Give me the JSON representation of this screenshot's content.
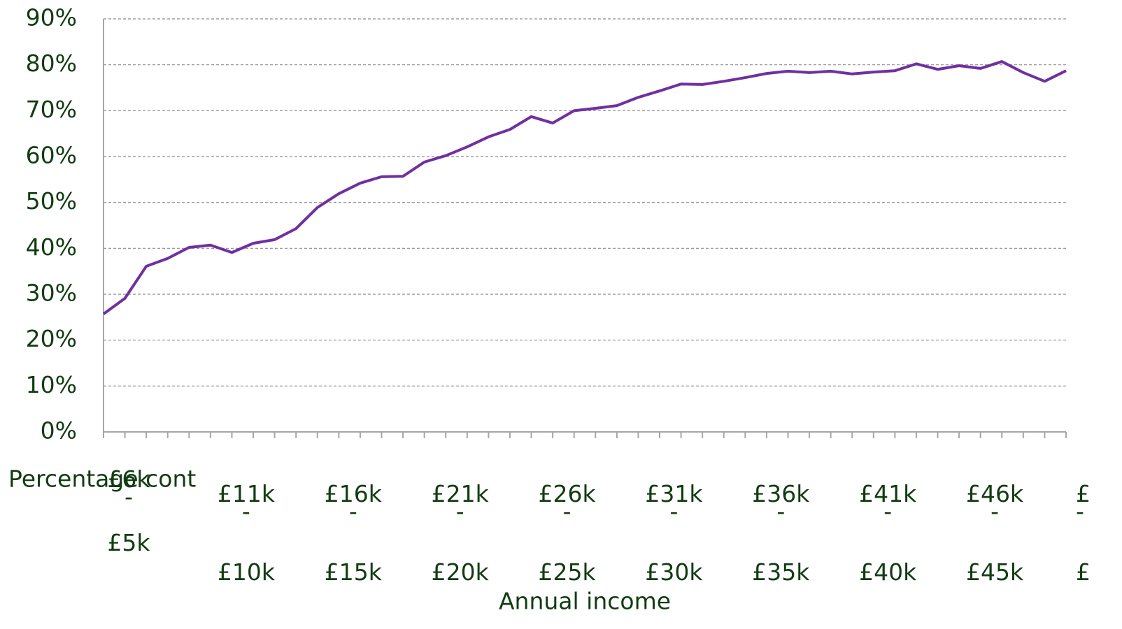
{
  "chart_data": {
    "type": "line",
    "x_label": "Annual income",
    "y_label": "Percentage cont",
    "categories": [
      "£6k - £5k",
      null,
      null,
      null,
      null,
      "£11k - £10k",
      null,
      null,
      null,
      null,
      "£16k - £15k",
      null,
      null,
      null,
      null,
      "£21k - £20k",
      null,
      null,
      null,
      null,
      "£26k - £25k",
      null,
      null,
      null,
      null,
      "£31k - £30k",
      null,
      null,
      null,
      null,
      "£36k - £35k",
      null,
      null,
      null,
      null,
      "£41k - £40k",
      null,
      null,
      null,
      null,
      "£46k - £45k",
      null,
      null,
      null,
      null,
      "£ - £"
    ],
    "series": [
      {
        "name": "Percentage",
        "color": "#7030a0",
        "values": [
          25.7,
          29.1,
          36.1,
          37.8,
          40.2,
          40.7,
          39.1,
          41.1,
          41.9,
          44.3,
          48.9,
          51.9,
          54.2,
          55.6,
          55.7,
          58.8,
          60.2,
          62.1,
          64.3,
          65.9,
          68.7,
          67.3,
          70.0,
          70.5,
          71.1,
          72.9,
          74.3,
          75.8,
          75.7,
          76.4,
          77.2,
          78.1,
          78.6,
          78.3,
          78.6,
          78.0,
          78.4,
          78.7,
          80.2,
          79.0,
          79.8,
          79.2,
          80.7,
          78.3,
          76.4,
          78.7
        ]
      }
    ],
    "ylim": [
      0,
      90
    ],
    "yticks": [
      {
        "value": 0,
        "label": "0%"
      },
      {
        "value": 10,
        "label": "10%"
      },
      {
        "value": 20,
        "label": "20%"
      },
      {
        "value": 30,
        "label": "30%"
      },
      {
        "value": 40,
        "label": "40%"
      },
      {
        "value": 50,
        "label": "50%"
      },
      {
        "value": 60,
        "label": "60%"
      },
      {
        "value": 70,
        "label": "70%"
      },
      {
        "value": 80,
        "label": "80%"
      },
      {
        "value": 90,
        "label": "90%"
      }
    ],
    "grid": true
  }
}
